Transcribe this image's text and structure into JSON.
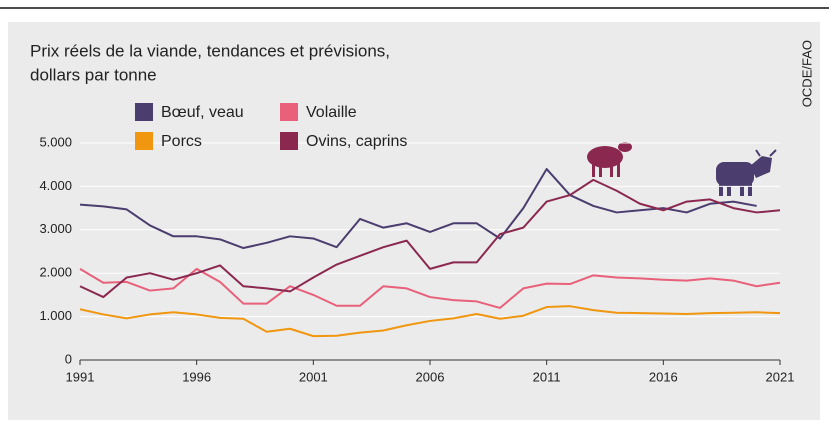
{
  "chart_data": {
    "type": "line",
    "title": "Prix réels de la viande, tendances et prévisions,",
    "subtitle": "dollars par tonne",
    "source": "OCDE/FAO",
    "x": [
      1991,
      1992,
      1993,
      1994,
      1995,
      1996,
      1997,
      1998,
      1999,
      2000,
      2001,
      2002,
      2003,
      2004,
      2005,
      2006,
      2007,
      2008,
      2009,
      2010,
      2011,
      2012,
      2013,
      2014,
      2015,
      2016,
      2017,
      2018,
      2019,
      2020,
      2021
    ],
    "series": [
      {
        "name": "Bœuf, veau",
        "color": "#4b3d6e",
        "values": [
          3580,
          3540,
          3470,
          3100,
          2850,
          2850,
          2780,
          2580,
          2700,
          2850,
          2800,
          2600,
          3250,
          3050,
          3150,
          2950,
          3150,
          3150,
          2800,
          3500,
          4400,
          3800,
          3550,
          3400,
          3450,
          3500,
          3400,
          3600,
          3650,
          3550,
          null
        ]
      },
      {
        "name": "Volaille",
        "color": "#e8607a",
        "values": [
          2100,
          1780,
          1800,
          1600,
          1650,
          2100,
          1800,
          1300,
          1300,
          1700,
          1500,
          1250,
          1250,
          1700,
          1650,
          1450,
          1380,
          1350,
          1200,
          1650,
          1760,
          1750,
          1950,
          1900,
          1880,
          1850,
          1830,
          1880,
          1830,
          1700,
          1780
        ]
      },
      {
        "name": "Porcs",
        "color": "#f0960f",
        "values": [
          1170,
          1050,
          960,
          1050,
          1100,
          1050,
          970,
          950,
          650,
          720,
          550,
          560,
          630,
          680,
          800,
          900,
          960,
          1060,
          950,
          1020,
          1220,
          1240,
          1150,
          1090,
          1080,
          1070,
          1060,
          1080,
          1090,
          1100,
          1080
        ]
      },
      {
        "name": "Ovins, caprins",
        "color": "#8a2850",
        "values": [
          1700,
          1450,
          1900,
          2000,
          1850,
          2000,
          2180,
          1700,
          1650,
          1580,
          1900,
          2200,
          2400,
          2600,
          2750,
          2100,
          2250,
          2250,
          2900,
          3050,
          3650,
          3800,
          4150,
          3900,
          3600,
          3450,
          3650,
          3700,
          3500,
          3400,
          3450
        ]
      }
    ],
    "xlim": [
      1991,
      2021
    ],
    "xticks": [
      1991,
      1996,
      2001,
      2006,
      2011,
      2016,
      2021
    ],
    "ylim": [
      0,
      5000
    ],
    "yticks": [
      0,
      {
        "value": 1000,
        "label": "1.000"
      },
      {
        "value": 2000,
        "label": "2.000"
      },
      {
        "value": 3000,
        "label": "3.000"
      },
      {
        "value": 4000,
        "label": "4.000"
      },
      {
        "value": 5000,
        "label": "5.000"
      }
    ],
    "grid": true
  }
}
